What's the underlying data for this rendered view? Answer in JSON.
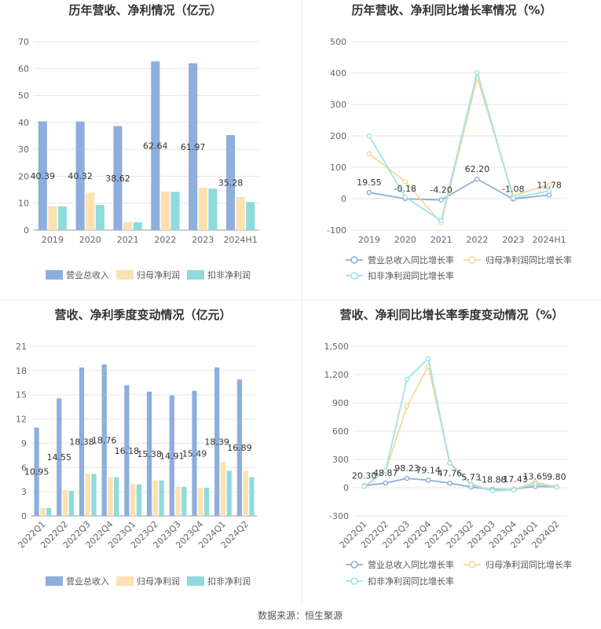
{
  "source": "数据来源：恒生聚源",
  "colors": {
    "bar_revenue": "#8eaedc",
    "bar_parent": "#fde1b0",
    "bar_nonrec": "#8fdbdb",
    "line_revenue": "#8eaedc",
    "line_parent": "#fcd69a",
    "line_nonrec": "#9fe2e8",
    "grid": "#e6e6e6",
    "divider": "#eeeeee"
  },
  "chart_data": [
    {
      "type": "bar",
      "title": "历年营收、净利情况（亿元）",
      "categories": [
        "2019",
        "2020",
        "2021",
        "2022",
        "2023",
        "2024H1"
      ],
      "ylim": [
        0,
        70
      ],
      "yticks": [
        0,
        10,
        20,
        30,
        40,
        50,
        60,
        70
      ],
      "series": [
        {
          "name": "营业总收入",
          "values": [
            40.39,
            40.32,
            38.62,
            62.64,
            61.97,
            35.28
          ],
          "labels": [
            "40.39",
            "40.32",
            "38.62",
            "62.64",
            "61.97",
            "35.28"
          ]
        },
        {
          "name": "归母净利润",
          "values": [
            8.9,
            13.9,
            3.0,
            14.3,
            15.7,
            12.3
          ]
        },
        {
          "name": "扣非净利润",
          "values": [
            8.8,
            9.3,
            2.9,
            14.2,
            15.4,
            10.4
          ]
        }
      ],
      "legend": "bottom"
    },
    {
      "type": "line",
      "title": "历年营收、净利同比增长率情况（%）",
      "categories": [
        "2019",
        "2020",
        "2021",
        "2022",
        "2023",
        "2024H1"
      ],
      "ylim": [
        -100,
        500
      ],
      "yticks": [
        -100,
        0,
        100,
        200,
        300,
        400,
        500
      ],
      "series": [
        {
          "name": "营业总收入同比增长率",
          "values": [
            19.55,
            -0.18,
            -4.2,
            62.2,
            -1.08,
            11.78
          ],
          "labels": [
            "19.55",
            "-0.18",
            "-4.20",
            "62.20",
            "-1.08",
            "11.78"
          ]
        },
        {
          "name": "归母净利润同比增长率",
          "values": [
            143,
            55,
            -78,
            385,
            9,
            45
          ]
        },
        {
          "name": "扣非净利润同比增长率",
          "values": [
            200,
            5,
            -70,
            402,
            2,
            25
          ]
        }
      ],
      "legend": "bottom"
    },
    {
      "type": "bar",
      "title": "营收、净利季度变动情况（亿元）",
      "categories": [
        "2022Q1",
        "2022Q2",
        "2022Q3",
        "2022Q4",
        "2023Q1",
        "2023Q2",
        "2023Q3",
        "2023Q4",
        "2024Q1",
        "2024Q2"
      ],
      "ylim": [
        0,
        21
      ],
      "yticks": [
        0,
        3,
        6,
        9,
        12,
        15,
        18,
        21
      ],
      "series": [
        {
          "name": "营业总收入",
          "values": [
            10.95,
            14.55,
            18.38,
            18.76,
            16.18,
            15.38,
            14.91,
            15.49,
            18.39,
            16.89
          ],
          "labels": [
            "10.95",
            "14.55",
            "18.38",
            "18.76",
            "16.18",
            "15.38",
            "14.91",
            "15.49",
            "18.39",
            "16.89"
          ]
        },
        {
          "name": "归母净利润",
          "values": [
            1.0,
            3.2,
            5.2,
            4.8,
            4.0,
            4.4,
            3.6,
            3.5,
            6.7,
            5.6
          ]
        },
        {
          "name": "扣非净利润",
          "values": [
            1.0,
            3.1,
            5.2,
            4.8,
            3.9,
            4.4,
            3.6,
            3.5,
            5.6,
            4.8
          ]
        }
      ],
      "legend": "bottom"
    },
    {
      "type": "line",
      "title": "营收、净利同比增长率季度变动情况（%）",
      "categories": [
        "2022Q1",
        "2022Q2",
        "2022Q3",
        "2022Q4",
        "2023Q1",
        "2023Q2",
        "2023Q3",
        "2023Q4",
        "2024Q1",
        "2024Q2"
      ],
      "ylim": [
        -300,
        1500
      ],
      "yticks": [
        -300,
        0,
        300,
        600,
        900,
        1200,
        1500
      ],
      "ytick_labels": [
        "-300",
        "0",
        "300",
        "600",
        "900",
        "1,200",
        "1,500"
      ],
      "series": [
        {
          "name": "营业总收入同比增长率",
          "values": [
            20.3,
            48.87,
            98.23,
            79.14,
            47.76,
            5.73,
            -18.88,
            -17.43,
            13.65,
            9.8
          ],
          "labels": [
            "20.30",
            "48.87",
            "98.23",
            "79.14",
            "47.76",
            "5.73",
            "-18.88",
            "-17.43",
            "13.65",
            "9.80"
          ]
        },
        {
          "name": "归母净利润同比增长率",
          "values": [
            10,
            175,
            860,
            1290,
            270,
            40,
            -30,
            -20,
            60,
            10
          ]
        },
        {
          "name": "扣非净利润同比增长率",
          "values": [
            15,
            180,
            1150,
            1370,
            260,
            30,
            -35,
            -25,
            40,
            5
          ]
        }
      ],
      "legend": "bottom"
    }
  ]
}
